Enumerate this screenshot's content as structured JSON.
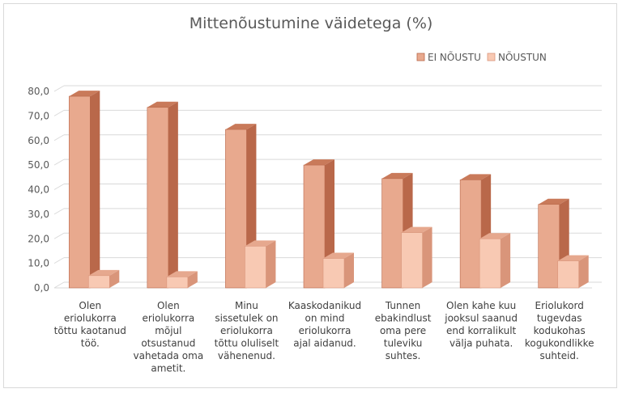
{
  "chart_data": {
    "type": "bar",
    "title": "Mittenõustumine väidetega (%)",
    "xlabel": "",
    "ylabel": "",
    "ylim": [
      0,
      80
    ],
    "yticks": [
      "0,0",
      "10,0",
      "20,0",
      "30,0",
      "40,0",
      "50,0",
      "60,0",
      "70,0",
      "80,0"
    ],
    "grid": true,
    "legend_position": "top-right",
    "categories": [
      [
        "Olen",
        "eriolukorra",
        "tõttu kaotanud",
        "töö."
      ],
      [
        "Olen",
        "eriolukorra",
        "mõjul",
        "otsustanud",
        "vahetada oma",
        "ametit."
      ],
      [
        "Minu",
        "sissetulek on",
        "eriolukorra",
        "tõttu oluliselt",
        "vähenenud."
      ],
      [
        "Kaaskodanikud",
        "on mind",
        "eriolukorra",
        "ajal aidanud."
      ],
      [
        "Tunnen",
        "ebakindlust",
        "oma pere",
        "tuleviku",
        "suhtes."
      ],
      [
        "Olen kahe kuu",
        "jooksul saanud",
        "end korralikult",
        "välja puhata."
      ],
      [
        "Eriolukord",
        "tugevdas",
        "kodukohas",
        "kogukondlikke",
        "suhteid."
      ]
    ],
    "series": [
      {
        "name": "EI NÕUSTU",
        "color_front": "#E8A98E",
        "color_side": "#B9684A",
        "color_top": "#C97A5A",
        "values": [
          78.0,
          73.5,
          64.5,
          50.0,
          44.5,
          44.0,
          34.0
        ]
      },
      {
        "name": "NÕUSTUN",
        "color_front": "#F8C9B3",
        "color_side": "#D9957A",
        "color_top": "#E6A88E",
        "values": [
          5.0,
          4.5,
          17.0,
          12.0,
          22.5,
          20.0,
          11.0
        ]
      }
    ]
  }
}
